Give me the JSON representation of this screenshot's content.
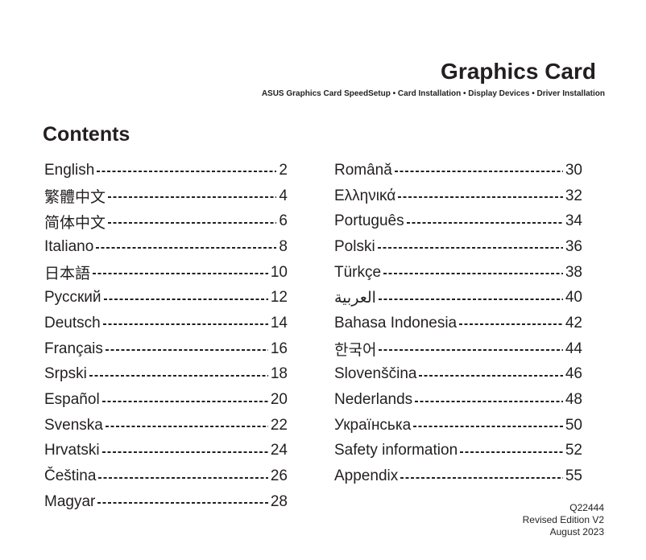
{
  "header": {
    "title": "Graphics Card",
    "subtitle": "ASUS Graphics Card SpeedSetup • Card Installation • Display Devices • Driver Installation"
  },
  "contents": {
    "heading": "Contents",
    "left_column": [
      {
        "label": "English",
        "page": "2"
      },
      {
        "label": "繁體中文",
        "page": "4"
      },
      {
        "label": "简体中文",
        "page": "6"
      },
      {
        "label": "Italiano",
        "page": "8"
      },
      {
        "label": "日本語",
        "page": "10"
      },
      {
        "label": "Русский",
        "page": "12"
      },
      {
        "label": "Deutsch",
        "page": "14"
      },
      {
        "label": "Français",
        "page": "16"
      },
      {
        "label": "Srpski",
        "page": "18"
      },
      {
        "label": "Español",
        "page": "20"
      },
      {
        "label": "Svenska",
        "page": "22"
      },
      {
        "label": "Hrvatski",
        "page": "24"
      },
      {
        "label": "Čeština",
        "page": "26"
      },
      {
        "label": "Magyar",
        "page": "28"
      }
    ],
    "right_column": [
      {
        "label": "Română",
        "page": "30"
      },
      {
        "label": "Ελληνικά",
        "page": "32"
      },
      {
        "label": "Português",
        "page": "34"
      },
      {
        "label": "Polski",
        "page": "36"
      },
      {
        "label": "Türkçe",
        "page": "38"
      },
      {
        "label": "العربية",
        "page": "40"
      },
      {
        "label": "Bahasa Indonesia",
        "page": "42"
      },
      {
        "label": "한국어",
        "page": "44"
      },
      {
        "label": "Slovenščina",
        "page": "46"
      },
      {
        "label": "Nederlands",
        "page": "48"
      },
      {
        "label": "Українська",
        "page": "50"
      },
      {
        "label": "Safety information",
        "page": "52"
      },
      {
        "label": "Appendix",
        "page": "55"
      }
    ]
  },
  "footer": {
    "doc_number": "Q22444",
    "edition": "Revised Edition V2",
    "date": "August 2023"
  },
  "colors": {
    "text": "#231f20",
    "background": "#ffffff"
  }
}
